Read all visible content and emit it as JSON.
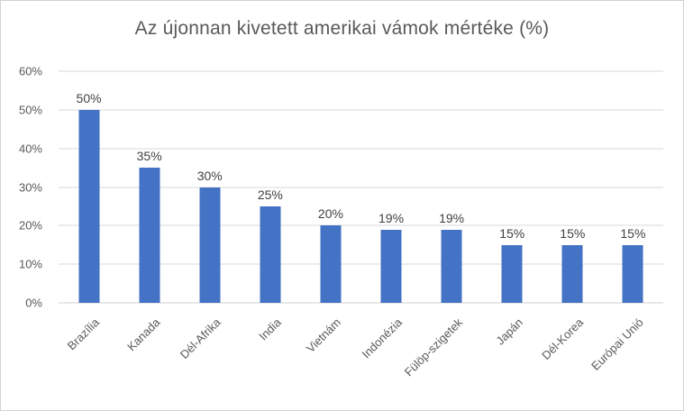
{
  "chart_data": {
    "type": "bar",
    "title": "Az újonnan kivetett amerikai vámok mértéke (%)",
    "categories": [
      "Brazília",
      "Kanada",
      "Dél-Afrika",
      "India",
      "Vietnám",
      "Indonézia",
      "Fülöp-szigetek",
      "Japán",
      "Dél-Korea",
      "Európai Unió"
    ],
    "values": [
      50,
      35,
      30,
      25,
      20,
      19,
      19,
      15,
      15,
      15
    ],
    "data_labels": [
      "50%",
      "35%",
      "30%",
      "25%",
      "20%",
      "19%",
      "19%",
      "15%",
      "15%",
      "15%"
    ],
    "y_ticks": [
      "0%",
      "10%",
      "20%",
      "30%",
      "40%",
      "50%",
      "60%"
    ],
    "ylim": [
      0,
      60
    ],
    "xlabel": "",
    "ylabel": "",
    "grid": "horizontal",
    "legend_position": "none",
    "colors": {
      "bar": "#4472c4",
      "gridline": "#d9d9d9",
      "title_text": "#595959",
      "axis_text": "#595959",
      "data_label_text": "#404040",
      "chart_border": "#d2d2d2",
      "background": "#ffffff"
    }
  }
}
